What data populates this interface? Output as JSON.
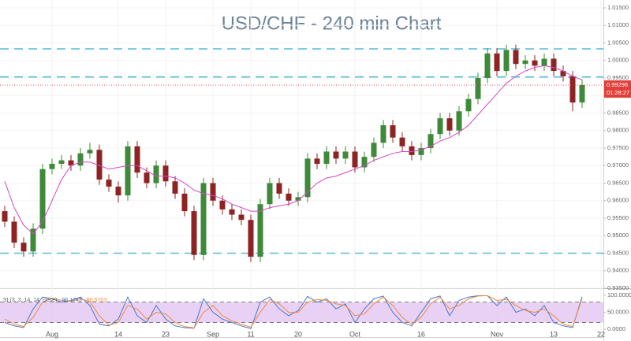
{
  "chart_data": [
    {
      "type": "candlestick",
      "title": "USD/CHF - 240 min Chart",
      "categories": [
        null,
        null,
        null,
        null,
        null,
        "Aug",
        null,
        null,
        null,
        null,
        null,
        null,
        "14",
        null,
        null,
        null,
        null,
        "23",
        null,
        null,
        null,
        null,
        "Sep",
        null,
        null,
        null,
        "11",
        null,
        null,
        null,
        null,
        "20",
        null,
        null,
        null,
        null,
        null,
        "Oct",
        null,
        null,
        null,
        null,
        null,
        null,
        "16",
        null,
        null,
        null,
        null,
        null,
        null,
        null,
        "Nov",
        null,
        null,
        null,
        null,
        null,
        "13",
        null,
        null,
        null,
        null,
        "22"
      ],
      "open": [
        0.957,
        0.954,
        0.948,
        0.9455,
        0.952,
        0.969,
        0.9705,
        0.9715,
        0.97,
        0.9735,
        0.9745,
        0.966,
        0.964,
        0.9615,
        0.9755,
        0.968,
        0.965,
        0.97,
        0.9655,
        0.962,
        0.957,
        0.9445,
        0.965,
        0.96,
        0.9575,
        0.956,
        0.9545,
        0.944,
        0.959,
        0.965,
        0.962,
        0.96,
        0.961,
        0.972,
        0.9705,
        0.974,
        0.972,
        0.974,
        0.9695,
        0.9725,
        0.9765,
        0.9815,
        0.978,
        0.9755,
        0.973,
        0.975,
        0.979,
        0.9835,
        0.98,
        0.9855,
        0.989,
        0.995,
        1.002,
        0.997,
        1.003,
        0.999,
        1.0,
        0.9985,
        1.0005,
        0.997,
        0.9955,
        0.988,
        null,
        null
      ],
      "high": [
        0.9585,
        0.9555,
        0.9495,
        0.9535,
        0.9705,
        0.972,
        0.973,
        0.973,
        0.975,
        0.9765,
        0.976,
        0.9675,
        0.9655,
        0.977,
        0.977,
        0.9695,
        0.9715,
        0.9715,
        0.967,
        0.9635,
        0.9585,
        0.9665,
        0.9665,
        0.9615,
        0.959,
        0.9575,
        0.956,
        0.9605,
        0.9665,
        0.9665,
        0.9635,
        0.9625,
        0.9735,
        0.9735,
        0.9755,
        0.9755,
        0.9755,
        0.9755,
        0.974,
        0.978,
        0.983,
        0.983,
        0.9795,
        0.977,
        0.9765,
        0.9805,
        0.985,
        0.985,
        0.987,
        0.9905,
        0.9965,
        1.0035,
        1.0035,
        1.0045,
        1.0045,
        1.0015,
        1.0015,
        1.002,
        1.002,
        0.9985,
        0.997,
        0.9945,
        null,
        null
      ],
      "low": [
        0.9525,
        0.9465,
        0.944,
        0.944,
        0.9505,
        0.9675,
        0.969,
        0.9685,
        0.9685,
        0.972,
        0.9645,
        0.9625,
        0.9595,
        0.96,
        0.9665,
        0.9635,
        0.9635,
        0.964,
        0.9605,
        0.9555,
        0.943,
        0.943,
        0.9585,
        0.956,
        0.9545,
        0.953,
        0.9425,
        0.9425,
        0.9575,
        0.9605,
        0.9585,
        0.9585,
        0.9595,
        0.969,
        0.969,
        0.9705,
        0.9705,
        0.968,
        0.968,
        0.971,
        0.975,
        0.9765,
        0.974,
        0.9715,
        0.9715,
        0.9735,
        0.9775,
        0.9785,
        0.9785,
        0.984,
        0.9875,
        0.9935,
        0.9955,
        0.9955,
        0.9975,
        0.9975,
        0.997,
        0.997,
        0.9955,
        0.994,
        0.9855,
        0.9865,
        null,
        null
      ],
      "close": [
        0.954,
        0.948,
        0.9455,
        0.952,
        0.969,
        0.9705,
        0.9715,
        0.97,
        0.9735,
        0.9745,
        0.966,
        0.964,
        0.9615,
        0.9755,
        0.968,
        0.965,
        0.97,
        0.9655,
        0.962,
        0.957,
        0.9445,
        0.965,
        0.96,
        0.9575,
        0.956,
        0.9545,
        0.944,
        0.959,
        0.965,
        0.962,
        0.96,
        0.961,
        0.972,
        0.9705,
        0.974,
        0.972,
        0.974,
        0.9695,
        0.9725,
        0.9765,
        0.9815,
        0.978,
        0.9755,
        0.973,
        0.975,
        0.979,
        0.9835,
        0.98,
        0.9855,
        0.989,
        0.995,
        1.002,
        0.997,
        1.003,
        0.999,
        1.0,
        0.9985,
        1.0005,
        0.997,
        0.9955,
        0.988,
        0.993,
        null,
        null
      ],
      "up_color": "#3f8a3a",
      "down_color": "#8e2323",
      "ma": {
        "color": "#d946c9",
        "values": [
          0.9655,
          0.958,
          0.953,
          0.9505,
          0.954,
          0.96,
          0.966,
          0.97,
          0.971,
          0.971,
          0.97,
          0.969,
          0.9695,
          0.97,
          0.97,
          0.9685,
          0.967,
          0.967,
          0.9665,
          0.965,
          0.963,
          0.962,
          0.9615,
          0.9605,
          0.959,
          0.958,
          0.957,
          0.957,
          0.958,
          0.9585,
          0.959,
          0.96,
          0.9625,
          0.965,
          0.9665,
          0.967,
          0.968,
          0.969,
          0.97,
          0.9715,
          0.9725,
          0.9735,
          0.974,
          0.974,
          0.9745,
          0.9755,
          0.977,
          0.978,
          0.9795,
          0.9815,
          0.9845,
          0.9875,
          0.9905,
          0.9935,
          0.9955,
          0.997,
          0.998,
          0.9985,
          0.998,
          0.997,
          0.9955,
          0.9945,
          null,
          null
        ]
      },
      "hlines": [
        {
          "value": 1.0033,
          "color": "#5bbcd8"
        },
        {
          "value": 0.9953,
          "color": "#5bbcd8"
        },
        {
          "value": 0.945,
          "color": "#5bbcd8"
        }
      ],
      "last_price": {
        "value": 0.99296,
        "color": "#e0403a",
        "timer": "01:28:27"
      },
      "ylim": [
        0.935,
        1.01725
      ],
      "yticks": [
        {
          "value": 1.015,
          "label": "1.01500"
        },
        {
          "value": 1.01,
          "label": "1.01000"
        },
        {
          "value": 1.005,
          "label": "1.00500"
        },
        {
          "value": 1.0,
          "label": "1.00000"
        },
        {
          "value": 0.995,
          "label": "0.99500"
        },
        {
          "value": 0.99,
          "label": "0.99000"
        },
        {
          "value": 0.985,
          "label": "0.98500"
        },
        {
          "value": 0.98,
          "label": "0.98000"
        },
        {
          "value": 0.975,
          "label": "0.97500"
        },
        {
          "value": 0.97,
          "label": "0.97000"
        },
        {
          "value": 0.965,
          "label": "0.96500"
        },
        {
          "value": 0.96,
          "label": "0.96000"
        },
        {
          "value": 0.955,
          "label": "0.95500"
        },
        {
          "value": 0.95,
          "label": "0.95000"
        },
        {
          "value": 0.945,
          "label": "0.94500"
        },
        {
          "value": 0.94,
          "label": "0.94000"
        },
        {
          "value": 0.935,
          "label": "0.93500"
        }
      ],
      "grid": true
    },
    {
      "type": "line",
      "label": "SI (3, 3, 14, 14, close)",
      "series": [
        {
          "color": "#4a78c8",
          "values": [
            20,
            10,
            5,
            60,
            95,
            90,
            80,
            85,
            95,
            70,
            15,
            10,
            30,
            95,
            40,
            20,
            70,
            30,
            10,
            5,
            3,
            90,
            50,
            30,
            20,
            10,
            2,
            80,
            95,
            60,
            40,
            55,
            97,
            80,
            90,
            60,
            75,
            20,
            60,
            90,
            98,
            50,
            20,
            10,
            50,
            90,
            98,
            40,
            85,
            95,
            99,
            99,
            70,
            95,
            50,
            60,
            40,
            70,
            20,
            10,
            5,
            96.1743,
            null,
            null
          ]
        },
        {
          "color": "#f08a3a",
          "values": [
            30,
            15,
            8,
            35,
            80,
            92,
            85,
            83,
            90,
            82,
            40,
            12,
            20,
            70,
            60,
            30,
            50,
            45,
            20,
            8,
            4,
            50,
            70,
            40,
            25,
            15,
            6,
            50,
            88,
            75,
            50,
            50,
            80,
            88,
            85,
            75,
            70,
            40,
            45,
            75,
            95,
            70,
            35,
            15,
            35,
            75,
            95,
            60,
            70,
            90,
            98,
            99,
            85,
            88,
            70,
            55,
            50,
            60,
            40,
            15,
            8,
            90.6703,
            null,
            null
          ]
        }
      ],
      "band": {
        "range": [
          20,
          80
        ],
        "color": "#e3c6f4"
      },
      "ylim": [
        -23,
        121
      ],
      "yticks": [
        {
          "value": 100,
          "label": "100.0000"
        },
        {
          "value": 50,
          "label": "50.0000"
        },
        {
          "value": 0,
          "label": "0.0000"
        }
      ]
    }
  ]
}
